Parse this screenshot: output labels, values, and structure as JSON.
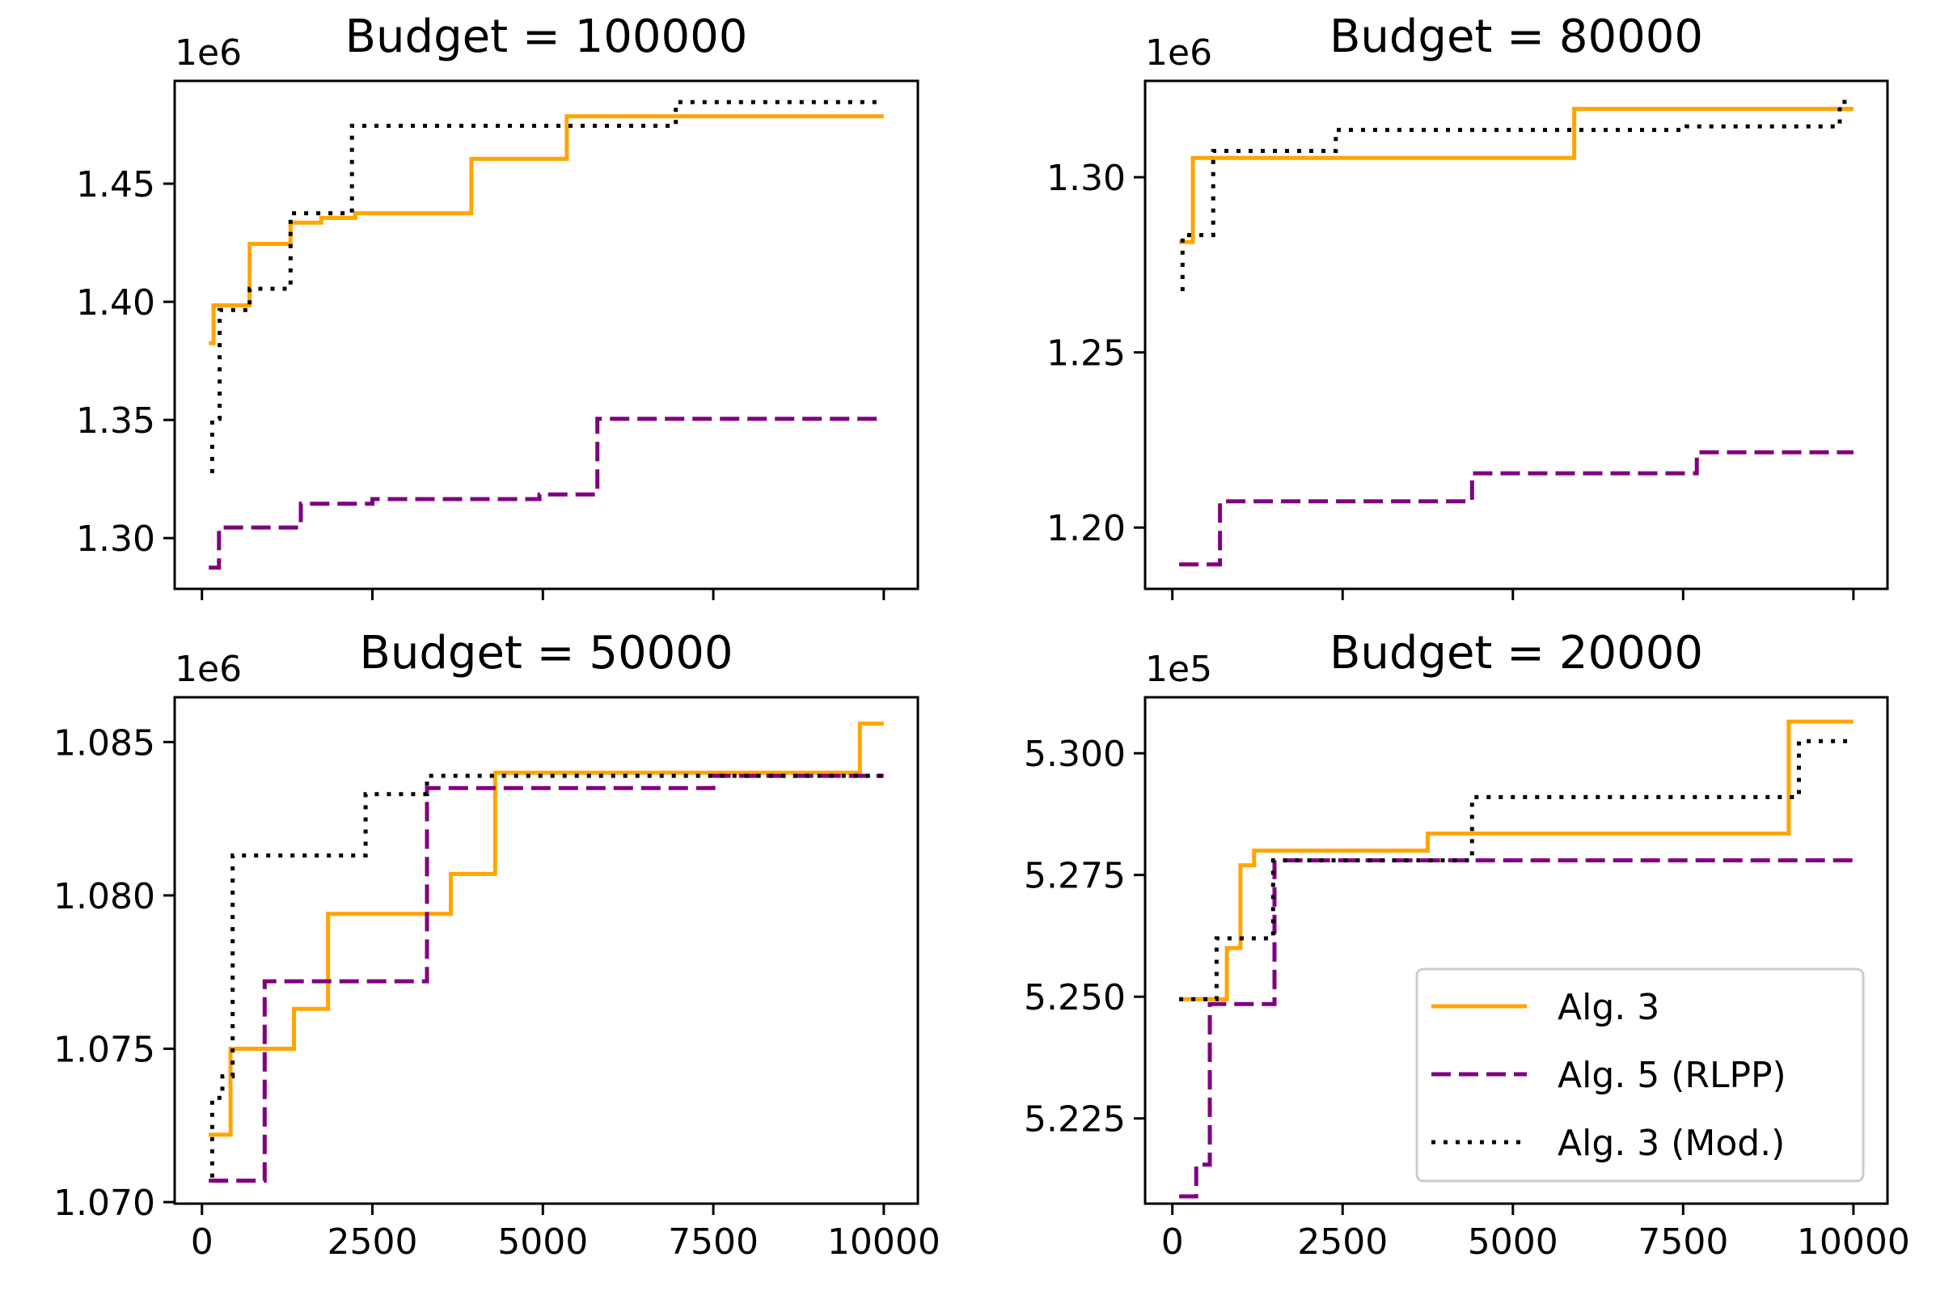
{
  "chart_data": [
    {
      "type": "line",
      "title": "Budget = 100000",
      "y_offset_label": "1e6",
      "xlim": [
        -400,
        10500
      ],
      "ylim": [
        1.2785,
        1.4935
      ],
      "xticks": [
        0,
        2500,
        5000,
        7500,
        10000
      ],
      "xtick_labels": [],
      "yticks": [
        1.3,
        1.35,
        1.4,
        1.45
      ],
      "ytick_labels": [
        "1.30",
        "1.35",
        "1.40",
        "1.45"
      ],
      "series": [
        {
          "name": "Alg. 3",
          "style": "solid",
          "color": "#FFA500",
          "x": [
            100,
            170,
            170,
            700,
            700,
            1300,
            1300,
            1750,
            1750,
            2250,
            2250,
            3950,
            3950,
            5350,
            5350,
            10000
          ],
          "y": [
            1.3825,
            1.3825,
            1.3985,
            1.3985,
            1.4245,
            1.4245,
            1.4335,
            1.4335,
            1.4355,
            1.4355,
            1.4375,
            1.4375,
            1.4605,
            1.4605,
            1.4785,
            1.4785
          ]
        },
        {
          "name": "Alg. 5 (RLPP)",
          "style": "dashed",
          "color": "#800080",
          "x": [
            100,
            250,
            250,
            1450,
            1450,
            2500,
            2500,
            4950,
            4950,
            5800,
            5800,
            10000
          ],
          "y": [
            1.2875,
            1.2875,
            1.3045,
            1.3045,
            1.3145,
            1.3145,
            1.3165,
            1.3165,
            1.3185,
            1.3185,
            1.3505,
            1.3505
          ]
        },
        {
          "name": "Alg. 3 (Mod.)",
          "style": "dotted",
          "color": "#000000",
          "x": [
            150,
            150,
            260,
            260,
            700,
            700,
            1300,
            1300,
            2200,
            2200,
            6950,
            6950,
            10000
          ],
          "y": [
            1.3275,
            1.3505,
            1.3505,
            1.3965,
            1.3965,
            1.4055,
            1.4055,
            1.4375,
            1.4375,
            1.4745,
            1.4745,
            1.4845,
            1.4845
          ]
        }
      ]
    },
    {
      "type": "line",
      "title": "Budget = 80000",
      "y_offset_label": "1e6",
      "xlim": [
        -400,
        10500
      ],
      "ylim": [
        1.1825,
        1.3275
      ],
      "xticks": [
        0,
        2500,
        5000,
        7500,
        10000
      ],
      "xtick_labels": [],
      "yticks": [
        1.2,
        1.25,
        1.3
      ],
      "ytick_labels": [
        "1.20",
        "1.25",
        "1.30"
      ],
      "series": [
        {
          "name": "Alg. 3",
          "style": "solid",
          "color": "#FFA500",
          "x": [
            100,
            300,
            300,
            5900,
            5900,
            10000
          ],
          "y": [
            1.2815,
            1.2815,
            1.3055,
            1.3055,
            1.3195,
            1.3195
          ]
        },
        {
          "name": "Alg. 5 (RLPP)",
          "style": "dashed",
          "color": "#800080",
          "x": [
            100,
            700,
            700,
            4400,
            4400,
            7700,
            7700,
            10000
          ],
          "y": [
            1.1895,
            1.1895,
            1.2075,
            1.2075,
            1.2155,
            1.2155,
            1.2215,
            1.2215
          ]
        },
        {
          "name": "Alg. 3 (Mod.)",
          "style": "dotted",
          "color": "#000000",
          "x": [
            150,
            150,
            600,
            600,
            2400,
            2400,
            7550,
            7550,
            9800,
            9800,
            10000
          ],
          "y": [
            1.2675,
            1.2835,
            1.2835,
            1.3075,
            1.3075,
            1.3135,
            1.3135,
            1.3145,
            1.3145,
            1.3215,
            1.3215
          ]
        }
      ]
    },
    {
      "type": "line",
      "title": "Budget = 50000",
      "y_offset_label": "1e6",
      "xlim": [
        -400,
        10500
      ],
      "ylim": [
        1.06995,
        1.08646
      ],
      "xticks": [
        0,
        2500,
        5000,
        7500,
        10000
      ],
      "xtick_labels": [
        "0",
        "2500",
        "5000",
        "7500",
        "10000"
      ],
      "yticks": [
        1.07,
        1.075,
        1.08,
        1.085
      ],
      "ytick_labels": [
        "1.070",
        "1.075",
        "1.080",
        "1.085"
      ],
      "series": [
        {
          "name": "Alg. 3",
          "style": "solid",
          "color": "#FFA500",
          "x": [
            100,
            420,
            420,
            1350,
            1350,
            1850,
            1850,
            3650,
            3650,
            4300,
            4300,
            9650,
            9650,
            10000
          ],
          "y": [
            1.0722,
            1.0722,
            1.075,
            1.075,
            1.0763,
            1.0763,
            1.0794,
            1.0794,
            1.0807,
            1.0807,
            1.084,
            1.084,
            1.0856,
            1.0856
          ]
        },
        {
          "name": "Alg. 5 (RLPP)",
          "style": "dashed",
          "color": "#800080",
          "x": [
            100,
            920,
            920,
            3300,
            3300,
            7500,
            7500,
            10000
          ],
          "y": [
            1.0707,
            1.0707,
            1.0772,
            1.0772,
            1.0835,
            1.0835,
            1.0839,
            1.0839
          ]
        },
        {
          "name": "Alg. 3 (Mod.)",
          "style": "dotted",
          "color": "#000000",
          "x": [
            150,
            150,
            300,
            300,
            450,
            450,
            2400,
            2400,
            3300,
            3300,
            10000
          ],
          "y": [
            1.0708,
            1.0734,
            1.0734,
            1.0741,
            1.0741,
            1.0813,
            1.0813,
            1.0833,
            1.0833,
            1.0839,
            1.0839
          ]
        }
      ]
    },
    {
      "type": "line",
      "title": "Budget = 20000",
      "y_offset_label": "1e5",
      "xlim": [
        -400,
        10500
      ],
      "ylim": [
        5.2075,
        5.3115
      ],
      "xticks": [
        0,
        2500,
        5000,
        7500,
        10000
      ],
      "xtick_labels": [
        "0",
        "2500",
        "5000",
        "7500",
        "10000"
      ],
      "yticks": [
        5.225,
        5.25,
        5.275,
        5.3
      ],
      "ytick_labels": [
        "5.225",
        "5.250",
        "5.275",
        "5.300"
      ],
      "series": [
        {
          "name": "Alg. 3",
          "style": "solid",
          "color": "#FFA500",
          "x": [
            100,
            800,
            800,
            1000,
            1000,
            1200,
            1200,
            3750,
            3750,
            9050,
            9050,
            10000
          ],
          "y": [
            5.2495,
            5.2495,
            5.26,
            5.26,
            5.277,
            5.277,
            5.28,
            5.28,
            5.2835,
            5.2835,
            5.3065,
            5.3065
          ]
        },
        {
          "name": "Alg. 5 (RLPP)",
          "style": "dashed",
          "color": "#800080",
          "x": [
            100,
            350,
            350,
            550,
            550,
            1500,
            1500,
            10000
          ],
          "y": [
            5.209,
            5.209,
            5.2155,
            5.2155,
            5.2485,
            5.2485,
            5.278,
            5.278
          ]
        },
        {
          "name": "Alg. 3 (Mod.)",
          "style": "dotted",
          "color": "#000000",
          "x": [
            100,
            650,
            650,
            1480,
            1480,
            4400,
            4400,
            9200,
            9200,
            10000
          ],
          "y": [
            5.2495,
            5.2495,
            5.262,
            5.262,
            5.278,
            5.278,
            5.291,
            5.291,
            5.3025,
            5.3025
          ]
        }
      ]
    }
  ],
  "legend": {
    "placement": "lower-right",
    "entries": [
      {
        "label": "Alg. 3",
        "style": "solid",
        "color": "#FFA500"
      },
      {
        "label": "Alg. 5 (RLPP)",
        "style": "dashed",
        "color": "#800080"
      },
      {
        "label": "Alg. 3 (Mod.)",
        "style": "dotted",
        "color": "#000000"
      }
    ]
  }
}
